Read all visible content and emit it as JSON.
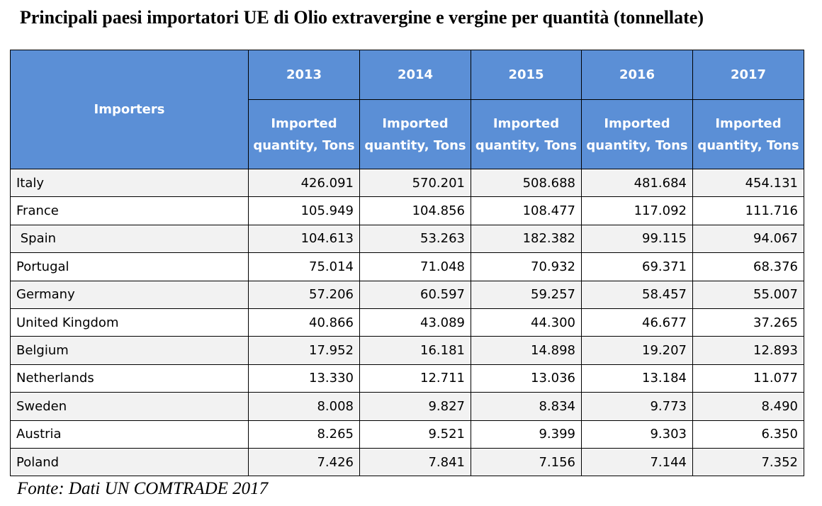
{
  "title": "Principali paesi importatori UE di Olio extravergine e vergine per quantità (tonnellate)",
  "source": "Fonte: Dati UN COMTRADE 2017",
  "chart_data": {
    "type": "table",
    "title": "Principali paesi importatori UE di Olio extravergine e vergine per quantità (tonnellate)",
    "row_header": "Importers",
    "years": [
      "2013",
      "2014",
      "2015",
      "2016",
      "2017"
    ],
    "subheader_line1": "Imported",
    "subheader_line2": "quantity, Tons",
    "rows": [
      {
        "country": "Italy",
        "values": [
          "426.091",
          "570.201",
          "508.688",
          "481.684",
          "454.131"
        ]
      },
      {
        "country": "France",
        "values": [
          "105.949",
          "104.856",
          "108.477",
          "117.092",
          "111.716"
        ]
      },
      {
        "country": " Spain",
        "values": [
          "104.613",
          "53.263",
          "182.382",
          "99.115",
          "94.067"
        ]
      },
      {
        "country": "Portugal",
        "values": [
          "75.014",
          "71.048",
          "70.932",
          "69.371",
          "68.376"
        ]
      },
      {
        "country": "Germany",
        "values": [
          "57.206",
          "60.597",
          "59.257",
          "58.457",
          "55.007"
        ]
      },
      {
        "country": "United Kingdom",
        "values": [
          "40.866",
          "43.089",
          "44.300",
          "46.677",
          "37.265"
        ]
      },
      {
        "country": "Belgium",
        "values": [
          "17.952",
          "16.181",
          "14.898",
          "19.207",
          "12.893"
        ]
      },
      {
        "country": "Netherlands",
        "values": [
          "13.330",
          "12.711",
          "13.036",
          "13.184",
          "11.077"
        ]
      },
      {
        "country": "Sweden",
        "values": [
          "8.008",
          "9.827",
          "8.834",
          "9.773",
          "8.490"
        ]
      },
      {
        "country": "Austria",
        "values": [
          "8.265",
          "9.521",
          "9.399",
          "9.303",
          "6.350"
        ]
      },
      {
        "country": "Poland",
        "values": [
          "7.426",
          "7.841",
          "7.156",
          "7.144",
          "7.352"
        ]
      }
    ]
  }
}
